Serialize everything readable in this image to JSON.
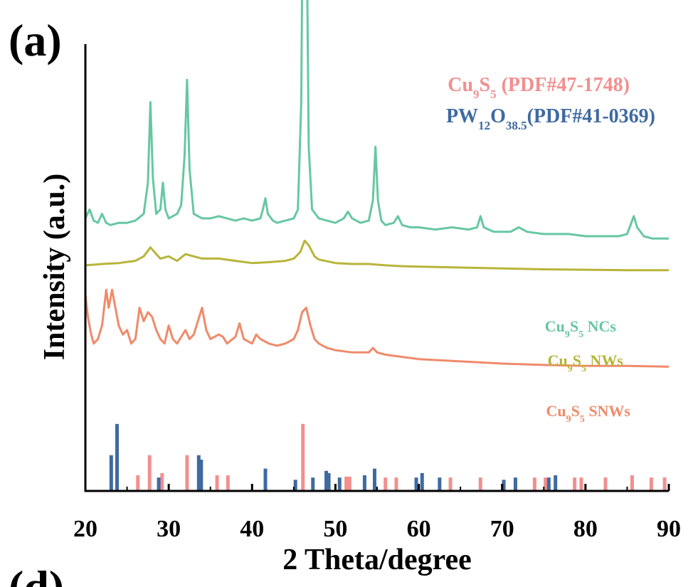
{
  "chart_data": {
    "type": "line",
    "panel_label": "(a)",
    "next_panel_label": "(d)",
    "xlabel": "2 Theta/degree",
    "ylabel": "Intensity (a.u.)",
    "xlim": [
      20,
      90
    ],
    "xticks": [
      20,
      30,
      40,
      50,
      60,
      70,
      80,
      90
    ],
    "y_ticks_shown": false,
    "grid": false,
    "series": [
      {
        "name_parts": [
          [
            "Cu",
            ""
          ],
          [
            "9",
            "sub"
          ],
          [
            "S",
            ""
          ],
          [
            "5",
            "sub"
          ],
          [
            " NCs",
            ""
          ]
        ],
        "color": "#66c7a3",
        "offset": 0.57,
        "points": [
          [
            20,
            0.04
          ],
          [
            20.5,
            0.06
          ],
          [
            21,
            0.035
          ],
          [
            21.5,
            0.03
          ],
          [
            22,
            0.05
          ],
          [
            22.5,
            0.03
          ],
          [
            23,
            0.025
          ],
          [
            24,
            0.03
          ],
          [
            25,
            0.03
          ],
          [
            26,
            0.035
          ],
          [
            27,
            0.05
          ],
          [
            27.5,
            0.12
          ],
          [
            27.8,
            0.3
          ],
          [
            28.1,
            0.13
          ],
          [
            28.5,
            0.05
          ],
          [
            29,
            0.06
          ],
          [
            29.3,
            0.12
          ],
          [
            29.6,
            0.06
          ],
          [
            30,
            0.04
          ],
          [
            31,
            0.05
          ],
          [
            31.5,
            0.07
          ],
          [
            31.9,
            0.18
          ],
          [
            32.2,
            0.35
          ],
          [
            32.5,
            0.15
          ],
          [
            33,
            0.05
          ],
          [
            34,
            0.04
          ],
          [
            35,
            0.04
          ],
          [
            36,
            0.045
          ],
          [
            37,
            0.04
          ],
          [
            38,
            0.035
          ],
          [
            39,
            0.04
          ],
          [
            40,
            0.035
          ],
          [
            41,
            0.04
          ],
          [
            41.3,
            0.06
          ],
          [
            41.6,
            0.085
          ],
          [
            41.9,
            0.05
          ],
          [
            42.5,
            0.035
          ],
          [
            43,
            0.03
          ],
          [
            44,
            0.035
          ],
          [
            45,
            0.04
          ],
          [
            45.5,
            0.06
          ],
          [
            45.9,
            0.3
          ],
          [
            46.1,
            0.8
          ],
          [
            46.3,
            0.98
          ],
          [
            46.5,
            0.8
          ],
          [
            46.8,
            0.2
          ],
          [
            47.2,
            0.06
          ],
          [
            48,
            0.04
          ],
          [
            49,
            0.035
          ],
          [
            50,
            0.03
          ],
          [
            51,
            0.04
          ],
          [
            51.5,
            0.055
          ],
          [
            52,
            0.04
          ],
          [
            53,
            0.03
          ],
          [
            54,
            0.035
          ],
          [
            54.5,
            0.08
          ],
          [
            54.8,
            0.2
          ],
          [
            55.1,
            0.08
          ],
          [
            55.5,
            0.035
          ],
          [
            56,
            0.025
          ],
          [
            57,
            0.03
          ],
          [
            57.5,
            0.045
          ],
          [
            58,
            0.025
          ],
          [
            59,
            0.02
          ],
          [
            60,
            0.02
          ],
          [
            62,
            0.015
          ],
          [
            64,
            0.02
          ],
          [
            66,
            0.015
          ],
          [
            67,
            0.02
          ],
          [
            67.4,
            0.045
          ],
          [
            67.8,
            0.02
          ],
          [
            69,
            0.01
          ],
          [
            70,
            0.01
          ],
          [
            71,
            0.01
          ],
          [
            72,
            0.02
          ],
          [
            73,
            0.01
          ],
          [
            75,
            0.005
          ],
          [
            78,
            0.005
          ],
          [
            80,
            0.0
          ],
          [
            82,
            0.0
          ],
          [
            84,
            0.0
          ],
          [
            85,
            0.005
          ],
          [
            85.5,
            0.03
          ],
          [
            85.8,
            0.045
          ],
          [
            86.2,
            0.02
          ],
          [
            87,
            0.0
          ],
          [
            88,
            -0.005
          ],
          [
            90,
            -0.005
          ]
        ]
      },
      {
        "name_parts": [
          [
            "Cu",
            ""
          ],
          [
            "9",
            "sub"
          ],
          [
            "S",
            ""
          ],
          [
            "5",
            "sub"
          ],
          [
            " NWs",
            ""
          ]
        ],
        "color": "#b8b43a",
        "offset": 0.5,
        "points": [
          [
            20,
            0.005
          ],
          [
            22,
            0.008
          ],
          [
            24,
            0.01
          ],
          [
            26,
            0.015
          ],
          [
            27,
            0.025
          ],
          [
            27.8,
            0.045
          ],
          [
            28.5,
            0.03
          ],
          [
            29,
            0.02
          ],
          [
            30,
            0.025
          ],
          [
            31,
            0.015
          ],
          [
            32,
            0.03
          ],
          [
            33,
            0.025
          ],
          [
            34,
            0.02
          ],
          [
            36,
            0.02
          ],
          [
            38,
            0.015
          ],
          [
            40,
            0.01
          ],
          [
            42,
            0.012
          ],
          [
            44,
            0.015
          ],
          [
            45,
            0.02
          ],
          [
            45.8,
            0.035
          ],
          [
            46.3,
            0.06
          ],
          [
            46.8,
            0.05
          ],
          [
            47.5,
            0.025
          ],
          [
            48,
            0.018
          ],
          [
            50,
            0.01
          ],
          [
            52,
            0.008
          ],
          [
            54,
            0.008
          ],
          [
            56,
            0.005
          ],
          [
            58,
            0.003
          ],
          [
            60,
            0.002
          ],
          [
            65,
            0.0
          ],
          [
            70,
            -0.002
          ],
          [
            75,
            -0.004
          ],
          [
            80,
            -0.005
          ],
          [
            85,
            -0.006
          ],
          [
            90,
            -0.006
          ]
        ]
      },
      {
        "name_parts": [
          [
            "Cu",
            ""
          ],
          [
            "9",
            "sub"
          ],
          [
            "S",
            ""
          ],
          [
            "5",
            "sub"
          ],
          [
            " SNWs",
            ""
          ]
        ],
        "color": "#f08a6a",
        "offset": 0.29,
        "points": [
          [
            20,
            0.15
          ],
          [
            20.3,
            0.1
          ],
          [
            20.7,
            0.06
          ],
          [
            21,
            0.04
          ],
          [
            21.5,
            0.05
          ],
          [
            22,
            0.08
          ],
          [
            22.5,
            0.16
          ],
          [
            22.8,
            0.12
          ],
          [
            23.2,
            0.16
          ],
          [
            23.5,
            0.13
          ],
          [
            24,
            0.08
          ],
          [
            24.5,
            0.06
          ],
          [
            25,
            0.07
          ],
          [
            25.5,
            0.04
          ],
          [
            26,
            0.05
          ],
          [
            26.5,
            0.12
          ],
          [
            27,
            0.09
          ],
          [
            27.5,
            0.11
          ],
          [
            28,
            0.1
          ],
          [
            28.5,
            0.07
          ],
          [
            29,
            0.05
          ],
          [
            29.5,
            0.04
          ],
          [
            30,
            0.08
          ],
          [
            30.5,
            0.05
          ],
          [
            31,
            0.04
          ],
          [
            32,
            0.07
          ],
          [
            32.5,
            0.05
          ],
          [
            33,
            0.06
          ],
          [
            33.5,
            0.09
          ],
          [
            34,
            0.12
          ],
          [
            34.5,
            0.07
          ],
          [
            35,
            0.05
          ],
          [
            36,
            0.06
          ],
          [
            36.5,
            0.055
          ],
          [
            37,
            0.04
          ],
          [
            38,
            0.055
          ],
          [
            38.5,
            0.085
          ],
          [
            39,
            0.05
          ],
          [
            40,
            0.04
          ],
          [
            40.5,
            0.06
          ],
          [
            41,
            0.05
          ],
          [
            42,
            0.04
          ],
          [
            43,
            0.035
          ],
          [
            44,
            0.04
          ],
          [
            45,
            0.05
          ],
          [
            45.5,
            0.07
          ],
          [
            46,
            0.11
          ],
          [
            46.5,
            0.12
          ],
          [
            47,
            0.08
          ],
          [
            47.5,
            0.05
          ],
          [
            48,
            0.04
          ],
          [
            49,
            0.03
          ],
          [
            50,
            0.025
          ],
          [
            52,
            0.02
          ],
          [
            54,
            0.02
          ],
          [
            54.5,
            0.03
          ],
          [
            55,
            0.02
          ],
          [
            56,
            0.015
          ],
          [
            58,
            0.01
          ],
          [
            60,
            0.005
          ],
          [
            65,
            0.0
          ],
          [
            70,
            -0.005
          ],
          [
            75,
            -0.008
          ],
          [
            80,
            -0.01
          ],
          [
            85,
            -0.01
          ],
          [
            90,
            -0.012
          ]
        ]
      }
    ],
    "reference_patterns": [
      {
        "name_parts": [
          [
            "Cu",
            ""
          ],
          [
            "9",
            "sub"
          ],
          [
            "S",
            ""
          ],
          [
            "5",
            "sub"
          ],
          [
            " (PDF#47-1748)",
            ""
          ]
        ],
        "color": "#f28f8f",
        "lines": [
          [
            26.3,
            0.035
          ],
          [
            27.7,
            0.08
          ],
          [
            29.2,
            0.04
          ],
          [
            32.2,
            0.08
          ],
          [
            35.8,
            0.035
          ],
          [
            37.1,
            0.035
          ],
          [
            46.1,
            0.15
          ],
          [
            49.2,
            0.032
          ],
          [
            51.3,
            0.032
          ],
          [
            51.7,
            0.032
          ],
          [
            56.0,
            0.03
          ],
          [
            57.3,
            0.03
          ],
          [
            63.8,
            0.03
          ],
          [
            67.4,
            0.03
          ],
          [
            73.9,
            0.03
          ],
          [
            75.2,
            0.03
          ],
          [
            78.7,
            0.03
          ],
          [
            79.5,
            0.03
          ],
          [
            82.4,
            0.03
          ],
          [
            85.6,
            0.035
          ],
          [
            87.9,
            0.03
          ],
          [
            89.5,
            0.03
          ]
        ]
      },
      {
        "name_parts": [
          [
            "PW",
            ""
          ],
          [
            "12",
            "sub"
          ],
          [
            "O",
            ""
          ],
          [
            "38.5",
            "sub"
          ],
          [
            "(PDF#41-0369)",
            ""
          ]
        ],
        "color": "#3f6aa0",
        "lines": [
          [
            23.1,
            0.08
          ],
          [
            23.8,
            0.15
          ],
          [
            28.8,
            0.03
          ],
          [
            33.6,
            0.08
          ],
          [
            33.9,
            0.07
          ],
          [
            41.6,
            0.05
          ],
          [
            45.2,
            0.025
          ],
          [
            47.3,
            0.03
          ],
          [
            48.9,
            0.045
          ],
          [
            49.2,
            0.04
          ],
          [
            50.5,
            0.03
          ],
          [
            53.5,
            0.035
          ],
          [
            54.7,
            0.05
          ],
          [
            59.7,
            0.03
          ],
          [
            60.4,
            0.04
          ],
          [
            62.5,
            0.03
          ],
          [
            70.2,
            0.025
          ],
          [
            71.6,
            0.03
          ],
          [
            75.6,
            0.03
          ],
          [
            76.4,
            0.035
          ]
        ]
      }
    ]
  }
}
